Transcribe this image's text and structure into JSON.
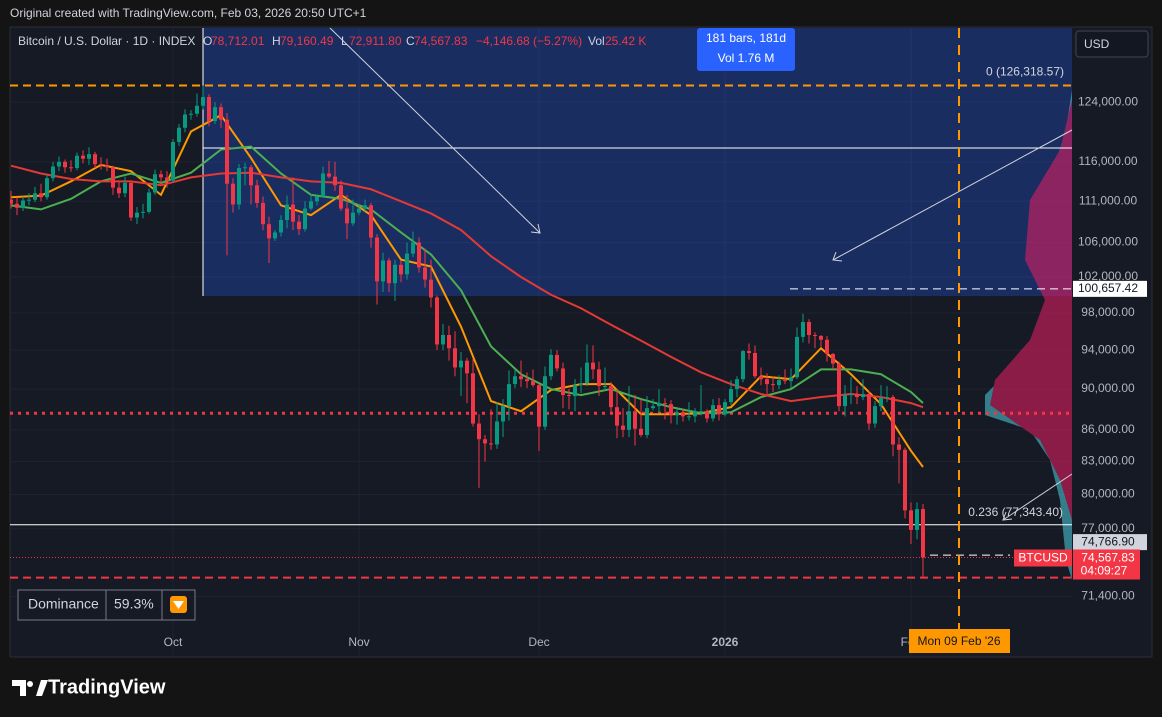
{
  "header": "Original created with TradingView.com, Feb 03, 2026 20:50 UTC+1",
  "chart_data": {
    "type": "candlestick",
    "title": "Bitcoin / U.S. Dollar · 1D · INDEX",
    "ohlc_legend": [
      {
        "key": "O",
        "value": "78,712.01"
      },
      {
        "key": "H",
        "value": "79,160.49"
      },
      {
        "key": "L",
        "value": "72,911.80"
      },
      {
        "key": "C",
        "value": "74,567.83"
      }
    ],
    "change": "−4,146.68 (−5.27%)",
    "volume_key": "Vol",
    "volume": "25.42 K",
    "currency": "USD",
    "measure": {
      "bars": "181 bars, 181d",
      "volume": "Vol 1.76 M"
    },
    "categories": [
      null,
      null,
      null,
      null,
      null,
      null,
      null,
      null,
      null,
      null,
      null,
      null,
      null,
      null,
      null,
      null,
      null,
      null,
      null,
      null,
      null,
      null,
      null,
      null,
      null,
      null,
      null,
      "Oct",
      null,
      null,
      null,
      null,
      null,
      null,
      null,
      null,
      null,
      null,
      null,
      null,
      null,
      null,
      null,
      null,
      null,
      null,
      null,
      null,
      null,
      null,
      null,
      null,
      null,
      null,
      null,
      null,
      null,
      null,
      "Nov",
      null,
      null,
      null,
      null,
      null,
      null,
      null,
      null,
      null,
      null,
      null,
      null,
      null,
      null,
      null,
      null,
      null,
      null,
      null,
      null,
      null,
      null,
      null,
      null,
      null,
      null,
      null,
      null,
      null,
      "Dec",
      null,
      null,
      null,
      null,
      null,
      null,
      null,
      null,
      null,
      null,
      null,
      null,
      null,
      null,
      null,
      null,
      null,
      null,
      null,
      null,
      null,
      null,
      null,
      null,
      null,
      null,
      null,
      null,
      null,
      null,
      "2026",
      null,
      null,
      null,
      null,
      null,
      null,
      null,
      null,
      null,
      null,
      null,
      null,
      null,
      null,
      null,
      null,
      null,
      null,
      null,
      null,
      null,
      null,
      null,
      null,
      null,
      null,
      null,
      null,
      null,
      null,
      "Feb",
      null,
      null
    ],
    "open": [
      111200,
      110700,
      110200,
      111100,
      111200,
      112000,
      111500,
      113900,
      115400,
      116000,
      115300,
      115200,
      116800,
      116400,
      117000,
      115700,
      115600,
      115300,
      112700,
      112000,
      113300,
      109000,
      109600,
      109700,
      112100,
      114400,
      114000,
      113600,
      118600,
      120500,
      122300,
      122400,
      123500,
      124700,
      121400,
      123300,
      121600,
      113200,
      110600,
      115200,
      115300,
      113000,
      110800,
      108200,
      106500,
      107200,
      108700,
      110600,
      108500,
      107600,
      110100,
      111000,
      111600,
      114500,
      114100,
      113000,
      110100,
      108300,
      109600,
      110100,
      110500,
      106600,
      101500,
      103900,
      101300,
      103400,
      102300,
      104700,
      106000,
      103100,
      101700,
      99700,
      94600,
      95600,
      94200,
      92200,
      92900,
      91600,
      86600,
      85100,
      84700,
      84600,
      86800,
      88300,
      90500,
      91300,
      91000,
      90800,
      90400,
      86300,
      91300,
      93500,
      92100,
      89400,
      89300,
      90400,
      90600,
      92700,
      92000,
      90300,
      90300,
      88200,
      86400,
      86000,
      87800,
      86100,
      85500,
      88100,
      88300,
      88600,
      88500,
      87400,
      87700,
      87300,
      87300,
      87800,
      87800,
      87100,
      88400,
      87500,
      88700,
      90000,
      91000,
      93900,
      93700,
      91300,
      91000,
      90500,
      90400,
      90900,
      90800,
      91200,
      95400,
      97000,
      95600,
      95500,
      95100,
      93600,
      92600,
      88300,
      89400,
      89500,
      89200,
      89500,
      86600,
      88300,
      89100,
      89200,
      84600,
      84100,
      78600,
      76900,
      78712.01
    ],
    "high": [
      112300,
      111500,
      111600,
      112000,
      112800,
      113200,
      114300,
      116000,
      116700,
      116300,
      116200,
      117200,
      117500,
      117900,
      117300,
      116600,
      116400,
      115500,
      113400,
      114100,
      113500,
      110300,
      110700,
      112600,
      115000,
      114900,
      114800,
      119000,
      121000,
      123000,
      122900,
      125200,
      126300,
      125100,
      124000,
      123800,
      122500,
      113900,
      115700,
      115900,
      115600,
      113700,
      111600,
      109100,
      107500,
      109300,
      111700,
      114000,
      109300,
      111000,
      111900,
      111800,
      115400,
      116100,
      116000,
      113600,
      111800,
      111200,
      110600,
      111200,
      110800,
      107000,
      104800,
      104200,
      104000,
      103900,
      106000,
      107300,
      106600,
      105300,
      104000,
      99900,
      96800,
      96600,
      96000,
      93800,
      93200,
      93100,
      87500,
      85500,
      88000,
      88700,
      89000,
      91900,
      92000,
      92900,
      91700,
      92000,
      90500,
      92300,
      94100,
      94000,
      92700,
      90000,
      91000,
      92200,
      94600,
      94500,
      92800,
      92200,
      90700,
      90000,
      88100,
      90300,
      89400,
      89000,
      89300,
      89000,
      90000,
      89100,
      88900,
      88100,
      88000,
      88700,
      88100,
      90400,
      88000,
      89000,
      89100,
      89000,
      90900,
      91300,
      94000,
      94700,
      94500,
      92200,
      91600,
      91300,
      91400,
      92000,
      92100,
      96400,
      97900,
      97300,
      95900,
      95600,
      95500,
      93700,
      92800,
      90400,
      91200,
      90300,
      91000,
      89800,
      88800,
      90400,
      90300,
      89400,
      85300,
      84300,
      79300,
      79300,
      79160.49
    ],
    "low": [
      110100,
      109300,
      109800,
      110500,
      110900,
      111000,
      111200,
      113500,
      114800,
      114600,
      114700,
      114900,
      115800,
      115600,
      115200,
      115000,
      114800,
      111800,
      111400,
      111500,
      108600,
      108200,
      108900,
      109500,
      111800,
      113200,
      112700,
      113400,
      118100,
      119900,
      121600,
      122000,
      123000,
      120700,
      121000,
      120500,
      104500,
      109600,
      110000,
      113000,
      110600,
      110200,
      107500,
      103600,
      106200,
      106700,
      107700,
      107500,
      106900,
      107300,
      109900,
      110500,
      111400,
      113900,
      112300,
      109800,
      106400,
      108000,
      109300,
      109800,
      105400,
      98900,
      100300,
      100300,
      99300,
      101400,
      101700,
      104300,
      102500,
      100800,
      98600,
      94000,
      94000,
      92900,
      91300,
      89300,
      88600,
      86300,
      80600,
      83000,
      84100,
      84200,
      85300,
      86900,
      90100,
      90200,
      90100,
      90200,
      84000,
      86000,
      90900,
      91800,
      88100,
      88000,
      87800,
      89600,
      90300,
      91000,
      89300,
      89900,
      87600,
      85200,
      85300,
      85300,
      84500,
      85300,
      85200,
      87900,
      87600,
      87000,
      86600,
      86500,
      86800,
      86900,
      86700,
      87400,
      86700,
      86800,
      86900,
      87300,
      88400,
      89200,
      90700,
      93000,
      91100,
      90400,
      89300,
      89700,
      90000,
      90500,
      90100,
      91000,
      94800,
      94700,
      94200,
      94300,
      92800,
      92000,
      87800,
      87300,
      88500,
      88500,
      88900,
      86000,
      86200,
      87800,
      88700,
      83500,
      81000,
      77900,
      75700,
      76100,
      72911.8
    ],
    "close": [
      110700,
      110200,
      111100,
      111200,
      112000,
      111500,
      113900,
      115400,
      116000,
      115300,
      115200,
      116800,
      116400,
      117000,
      115700,
      115600,
      115300,
      112700,
      112000,
      113300,
      109000,
      109600,
      109700,
      112100,
      114400,
      114000,
      113600,
      118600,
      120500,
      122300,
      122400,
      123500,
      124700,
      121400,
      123300,
      121600,
      113200,
      110600,
      115200,
      115300,
      113000,
      110800,
      108200,
      106500,
      107200,
      108700,
      110600,
      108500,
      107600,
      110100,
      111000,
      111600,
      114500,
      114100,
      113000,
      110100,
      108300,
      109600,
      110100,
      110500,
      106600,
      101500,
      103900,
      101300,
      103400,
      102300,
      104700,
      106000,
      103100,
      101700,
      99700,
      94600,
      95600,
      94200,
      92200,
      92900,
      91600,
      86600,
      85100,
      84700,
      84600,
      86800,
      88300,
      90500,
      91300,
      91000,
      90800,
      90400,
      86300,
      91300,
      93500,
      92100,
      89400,
      89300,
      90400,
      90600,
      92700,
      92000,
      90300,
      90300,
      88200,
      86400,
      86000,
      87800,
      86100,
      85500,
      88100,
      88300,
      88600,
      88500,
      87400,
      87700,
      87300,
      87300,
      87800,
      87800,
      87100,
      88400,
      87500,
      88700,
      90000,
      91000,
      93900,
      93700,
      91300,
      91000,
      90500,
      90400,
      90900,
      90800,
      91200,
      95400,
      97000,
      95600,
      95500,
      95100,
      93600,
      92600,
      88300,
      89400,
      89500,
      89200,
      89500,
      86600,
      88300,
      89100,
      89200,
      84600,
      84100,
      78600,
      76900,
      78712.01,
      74567.83
    ],
    "up_color": "#089981",
    "down_color": "#f23645",
    "moving_averages": [
      {
        "color": "#ff9800",
        "x": [
          0,
          5,
          10,
          15,
          20,
          25,
          30,
          35,
          40,
          45,
          50,
          55,
          60,
          65,
          70,
          75,
          80,
          85,
          90,
          95,
          100,
          105,
          110,
          115,
          120,
          125,
          130,
          135,
          140,
          145,
          150,
          152
        ],
        "values": [
          111500,
          111700,
          113500,
          115600,
          114800,
          111800,
          120000,
          122200,
          116500,
          110500,
          109300,
          111800,
          109300,
          104000,
          103200,
          96500,
          88800,
          87800,
          89900,
          90500,
          90500,
          87500,
          87500,
          87600,
          88200,
          91300,
          91000,
          94200,
          91500,
          88500,
          84000,
          82500
        ]
      },
      {
        "color": "#4caf50",
        "x": [
          0,
          5,
          10,
          15,
          20,
          25,
          30,
          35,
          40,
          45,
          50,
          55,
          60,
          65,
          70,
          75,
          80,
          85,
          90,
          95,
          100,
          105,
          110,
          115,
          120,
          125,
          130,
          135,
          140,
          145,
          150,
          152
        ],
        "values": [
          110500,
          110000,
          111300,
          113500,
          114500,
          113300,
          114600,
          117600,
          118000,
          114500,
          111800,
          111300,
          110000,
          107200,
          104600,
          100500,
          94400,
          91500,
          90000,
          89400,
          90000,
          89000,
          88200,
          87600,
          87700,
          89200,
          90000,
          92000,
          92000,
          91500,
          89700,
          88600
        ]
      },
      {
        "color": "#e53935",
        "x": [
          0,
          5,
          10,
          15,
          20,
          25,
          30,
          35,
          40,
          45,
          50,
          55,
          60,
          65,
          70,
          75,
          80,
          85,
          90,
          95,
          100,
          105,
          110,
          115,
          120,
          125,
          130,
          135,
          140,
          145,
          150,
          152
        ],
        "values": [
          115500,
          114500,
          113800,
          113500,
          113500,
          113000,
          114000,
          114500,
          114600,
          114000,
          113500,
          113300,
          112500,
          111000,
          109500,
          107500,
          104400,
          102000,
          100000,
          98500,
          96700,
          95000,
          93300,
          91700,
          90500,
          89500,
          88800,
          89200,
          89500,
          89200,
          88600,
          88200
        ]
      }
    ],
    "ylim": [
      66800,
      134700
    ],
    "log_scale": true,
    "grid": true,
    "yticks": [
      {
        "value": 124000,
        "label": "124,000.00"
      },
      {
        "value": 116000,
        "label": "116,000.00"
      },
      {
        "value": 111000,
        "label": "111,000.00"
      },
      {
        "value": 106000,
        "label": "106,000.00"
      },
      {
        "value": 102000,
        "label": "102,000.00"
      },
      {
        "value": 98000,
        "label": "98,000.00"
      },
      {
        "value": 94000,
        "label": "94,000.00"
      },
      {
        "value": 90000,
        "label": "90,000.00"
      },
      {
        "value": 86000,
        "label": "86,000.00"
      },
      {
        "value": 83000,
        "label": "83,000.00"
      },
      {
        "value": 80000,
        "label": "80,000.00"
      },
      {
        "value": 77000,
        "label": "77,000.00"
      },
      {
        "value": 71400,
        "label": "71,400.00"
      }
    ],
    "levels": [
      {
        "value": 126318.57,
        "label": "0 (126,318.57)",
        "color": "#ff9800",
        "style": "dashed"
      },
      {
        "value": 77343.4,
        "label": "0.236 (77,343.40)",
        "color": "#ffffff",
        "style": "solid"
      },
      {
        "value": 117800,
        "color": "#ffffff",
        "style": "solid"
      },
      {
        "value": 100657.42,
        "label": "100,657.42",
        "color": "#ffffff",
        "style": "dashed"
      },
      {
        "value": 87600,
        "color": "#f23645",
        "style": "dotted"
      },
      {
        "value": 72911.8,
        "color": "#f23645",
        "style": "dashed"
      },
      {
        "value": 74766.9,
        "label": "74,766.90",
        "color": "#ffffff",
        "style": "dashed"
      }
    ],
    "last_price": {
      "symbol": "BTCUSD",
      "label": "74,567.83",
      "countdown": "04:09:27"
    }
  },
  "dominance": {
    "label": "Dominance",
    "value": "59.3%"
  },
  "date_marker": "Mon 09 Feb '26",
  "brand": "TradingView"
}
